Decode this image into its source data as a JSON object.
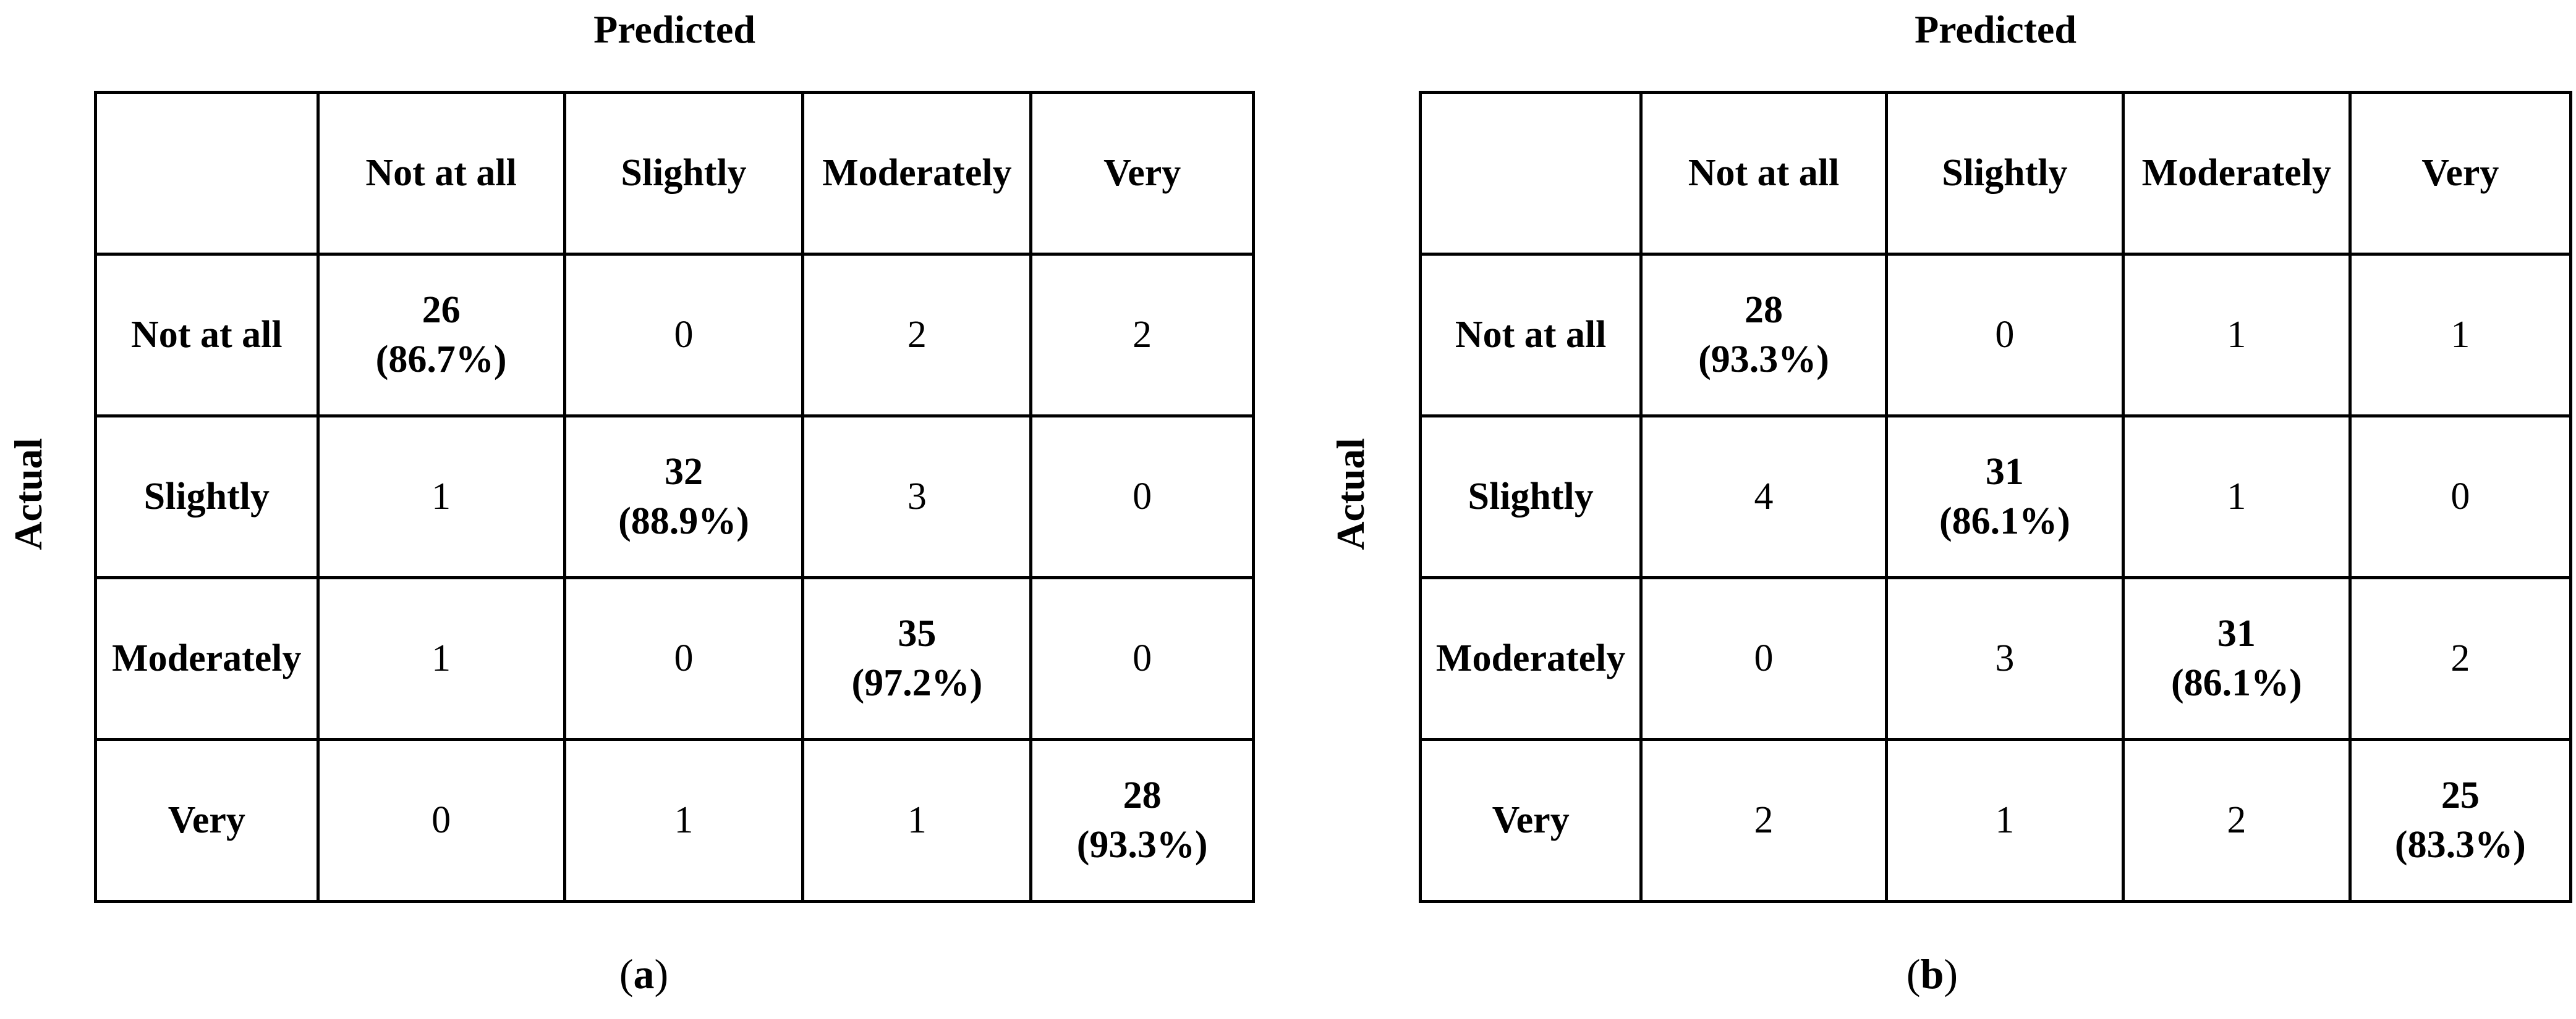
{
  "figure": {
    "background": "#ffffff",
    "text_color": "#000000",
    "border_color": "#000000",
    "panels": [
      {
        "id": "a",
        "top_label": "Predicted",
        "side_label": "Actual",
        "col_headers": [
          "Not at all",
          "Slightly",
          "Moderately",
          "Very"
        ],
        "rows": [
          {
            "label": "Not at all",
            "cells": [
              {
                "value": "26",
                "percent": "(86.7%)"
              },
              {
                "value": "0",
                "percent": ""
              },
              {
                "value": "2",
                "percent": ""
              },
              {
                "value": "2",
                "percent": ""
              }
            ]
          },
          {
            "label": "Slightly",
            "cells": [
              {
                "value": "1",
                "percent": ""
              },
              {
                "value": "32",
                "percent": "(88.9%)"
              },
              {
                "value": "3",
                "percent": ""
              },
              {
                "value": "0",
                "percent": ""
              }
            ]
          },
          {
            "label": "Moderately",
            "cells": [
              {
                "value": "1",
                "percent": ""
              },
              {
                "value": "0",
                "percent": ""
              },
              {
                "value": "35",
                "percent": "(97.2%)"
              },
              {
                "value": "0",
                "percent": ""
              }
            ]
          },
          {
            "label": "Very",
            "cells": [
              {
                "value": "0",
                "percent": ""
              },
              {
                "value": "1",
                "percent": ""
              },
              {
                "value": "1",
                "percent": ""
              },
              {
                "value": "28",
                "percent": "(93.3%)"
              }
            ]
          }
        ],
        "caption": {
          "open": "(",
          "letter": "a",
          "close": ")"
        }
      },
      {
        "id": "b",
        "top_label": "Predicted",
        "side_label": "Actual",
        "col_headers": [
          "Not at all",
          "Slightly",
          "Moderately",
          "Very"
        ],
        "rows": [
          {
            "label": "Not at all",
            "cells": [
              {
                "value": "28",
                "percent": "(93.3%)"
              },
              {
                "value": "0",
                "percent": ""
              },
              {
                "value": "1",
                "percent": ""
              },
              {
                "value": "1",
                "percent": ""
              }
            ]
          },
          {
            "label": "Slightly",
            "cells": [
              {
                "value": "4",
                "percent": ""
              },
              {
                "value": "31",
                "percent": "(86.1%)"
              },
              {
                "value": "1",
                "percent": ""
              },
              {
                "value": "0",
                "percent": ""
              }
            ]
          },
          {
            "label": "Moderately",
            "cells": [
              {
                "value": "0",
                "percent": ""
              },
              {
                "value": "3",
                "percent": ""
              },
              {
                "value": "31",
                "percent": "(86.1%)"
              },
              {
                "value": "2",
                "percent": ""
              }
            ]
          },
          {
            "label": "Very",
            "cells": [
              {
                "value": "2",
                "percent": ""
              },
              {
                "value": "1",
                "percent": ""
              },
              {
                "value": "2",
                "percent": ""
              },
              {
                "value": "25",
                "percent": "(83.3%)"
              }
            ]
          }
        ],
        "caption": {
          "open": "(",
          "letter": "b",
          "close": ")"
        }
      }
    ]
  },
  "chart_data": [
    {
      "type": "table",
      "title": "(a) Confusion matrix",
      "xlabel": "Predicted",
      "ylabel": "Actual",
      "categories": [
        "Not at all",
        "Slightly",
        "Moderately",
        "Very"
      ],
      "matrix": [
        [
          26,
          0,
          2,
          2
        ],
        [
          1,
          32,
          3,
          0
        ],
        [
          1,
          0,
          35,
          0
        ],
        [
          0,
          1,
          1,
          28
        ]
      ],
      "diagonal_percent": [
        "86.7%",
        "88.9%",
        "97.2%",
        "93.3%"
      ]
    },
    {
      "type": "table",
      "title": "(b) Confusion matrix",
      "xlabel": "Predicted",
      "ylabel": "Actual",
      "categories": [
        "Not at all",
        "Slightly",
        "Moderately",
        "Very"
      ],
      "matrix": [
        [
          28,
          0,
          1,
          1
        ],
        [
          4,
          31,
          1,
          0
        ],
        [
          0,
          3,
          31,
          2
        ],
        [
          2,
          1,
          2,
          25
        ]
      ],
      "diagonal_percent": [
        "93.3%",
        "86.1%",
        "86.1%",
        "83.3%"
      ]
    }
  ]
}
